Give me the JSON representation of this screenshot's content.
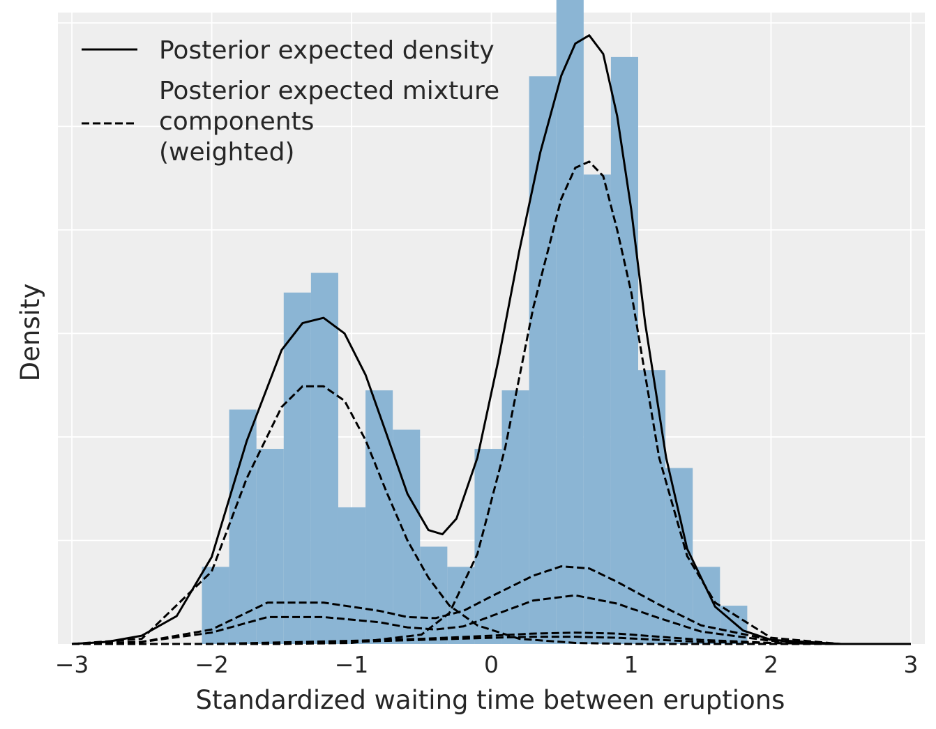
{
  "chart_data": {
    "type": "histogram",
    "xlabel": "Standardized waiting time between eruptions",
    "ylabel": "Density",
    "xlim": [
      -3.1,
      3.1
    ],
    "ylim": [
      0,
      0.61
    ],
    "grid": true,
    "legend_position": "top-left",
    "x_ticks": [
      {
        "value": -3,
        "label": "−3"
      },
      {
        "value": -2,
        "label": "−2"
      },
      {
        "value": -1,
        "label": "−1"
      },
      {
        "value": 0,
        "label": "0"
      },
      {
        "value": 1,
        "label": "1"
      },
      {
        "value": 2,
        "label": "2"
      },
      {
        "value": 3,
        "label": "3"
      }
    ],
    "y_gridlines": [
      0.1,
      0.2,
      0.3,
      0.4,
      0.5,
      0.6
    ],
    "histogram": {
      "color": "#85B1D2",
      "bins": [
        {
          "left": -2.07,
          "right": -1.875,
          "density": 0.0745
        },
        {
          "left": -1.875,
          "right": -1.68,
          "density": 0.2265
        },
        {
          "left": -1.68,
          "right": -1.485,
          "density": 0.1885
        },
        {
          "left": -1.485,
          "right": -1.29,
          "density": 0.3395
        },
        {
          "left": -1.29,
          "right": -1.095,
          "density": 0.3585
        },
        {
          "left": -1.095,
          "right": -0.9,
          "density": 0.132
        },
        {
          "left": -0.9,
          "right": -0.705,
          "density": 0.245
        },
        {
          "left": -0.705,
          "right": -0.51,
          "density": 0.207
        },
        {
          "left": -0.51,
          "right": -0.315,
          "density": 0.094
        },
        {
          "left": -0.315,
          "right": -0.12,
          "density": 0.0745
        },
        {
          "left": -0.12,
          "right": 0.075,
          "density": 0.1885
        },
        {
          "left": 0.075,
          "right": 0.27,
          "density": 0.245
        },
        {
          "left": 0.27,
          "right": 0.465,
          "density": 0.5485
        },
        {
          "left": 0.465,
          "right": 0.66,
          "density": 0.6235
        },
        {
          "left": 0.66,
          "right": 0.855,
          "density": 0.4535
        },
        {
          "left": 0.855,
          "right": 1.05,
          "density": 0.567
        },
        {
          "left": 1.05,
          "right": 1.245,
          "density": 0.2645
        },
        {
          "left": 1.245,
          "right": 1.44,
          "density": 0.17
        },
        {
          "left": 1.44,
          "right": 1.635,
          "density": 0.0745
        },
        {
          "left": 1.635,
          "right": 1.83,
          "density": 0.037
        }
      ]
    },
    "series": [
      {
        "name": "Posterior expected density",
        "style": "solid",
        "x": [
          -3.0,
          -2.75,
          -2.5,
          -2.25,
          -2.0,
          -1.75,
          -1.5,
          -1.35,
          -1.2,
          -1.05,
          -0.9,
          -0.75,
          -0.6,
          -0.45,
          -0.35,
          -0.25,
          -0.1,
          0.05,
          0.2,
          0.35,
          0.5,
          0.6,
          0.7,
          0.8,
          0.9,
          1.0,
          1.1,
          1.25,
          1.4,
          1.6,
          1.8,
          2.0,
          2.25,
          2.5,
          3.0
        ],
        "y": [
          0.0,
          0.002,
          0.008,
          0.027,
          0.084,
          0.196,
          0.284,
          0.31,
          0.315,
          0.3,
          0.26,
          0.203,
          0.145,
          0.11,
          0.106,
          0.121,
          0.18,
          0.274,
          0.38,
          0.475,
          0.549,
          0.58,
          0.588,
          0.57,
          0.51,
          0.42,
          0.31,
          0.18,
          0.092,
          0.036,
          0.013,
          0.004,
          0.001,
          0.0,
          0.0
        ]
      },
      {
        "name": "Posterior expected mixture components (weighted)",
        "style": "dashed",
        "x": [
          -3.0,
          -2.5,
          -2.0,
          -1.75,
          -1.5,
          -1.35,
          -1.2,
          -1.05,
          -0.9,
          -0.75,
          -0.6,
          -0.45,
          -0.3,
          -0.1,
          0.2,
          0.6,
          1.0,
          1.5,
          2.0,
          2.5,
          3.0
        ],
        "y": [
          0.0,
          0.005,
          0.07,
          0.16,
          0.229,
          0.249,
          0.249,
          0.235,
          0.197,
          0.147,
          0.1,
          0.064,
          0.037,
          0.018,
          0.005,
          0.001,
          0.0,
          0.0,
          0.0,
          0.0,
          0.0
        ]
      },
      {
        "name": "Posterior expected mixture components (weighted)",
        "style": "dashed",
        "x": [
          -3.0,
          -2.5,
          -2.0,
          -1.5,
          -1.0,
          -0.5,
          -0.3,
          -0.1,
          0.1,
          0.3,
          0.5,
          0.6,
          0.7,
          0.8,
          0.9,
          1.0,
          1.1,
          1.2,
          1.4,
          1.6,
          2.0,
          2.5,
          3.0
        ],
        "y": [
          0.0,
          0.0,
          0.0,
          0.0,
          0.001,
          0.009,
          0.03,
          0.087,
          0.19,
          0.325,
          0.43,
          0.46,
          0.466,
          0.452,
          0.4,
          0.34,
          0.26,
          0.18,
          0.085,
          0.04,
          0.006,
          0.0,
          0.0
        ]
      },
      {
        "name": "Posterior expected mixture components (weighted)",
        "style": "dashed",
        "x": [
          -3.0,
          -2.5,
          -2.0,
          -1.6,
          -1.2,
          -0.8,
          -0.6,
          -0.4,
          -0.2,
          0.0,
          0.3,
          0.5,
          0.7,
          0.9,
          1.2,
          1.5,
          2.0,
          2.5,
          3.0
        ],
        "y": [
          0.0,
          0.002,
          0.014,
          0.04,
          0.04,
          0.032,
          0.026,
          0.025,
          0.032,
          0.046,
          0.066,
          0.075,
          0.073,
          0.06,
          0.038,
          0.018,
          0.004,
          0.0,
          0.0
        ]
      },
      {
        "name": "Posterior expected mixture components (weighted)",
        "style": "dashed",
        "x": [
          -3.0,
          -2.5,
          -2.0,
          -1.6,
          -1.2,
          -0.8,
          -0.6,
          -0.4,
          -0.2,
          0.0,
          0.3,
          0.6,
          0.9,
          1.2,
          1.5,
          2.0,
          2.5,
          3.0
        ],
        "y": [
          0.0,
          0.002,
          0.011,
          0.026,
          0.026,
          0.021,
          0.016,
          0.014,
          0.017,
          0.027,
          0.042,
          0.047,
          0.039,
          0.025,
          0.012,
          0.003,
          0.0,
          0.0
        ]
      },
      {
        "name": "Posterior expected mixture components (weighted)",
        "style": "dashed",
        "x": [
          -3.0,
          -2.0,
          -1.0,
          -0.5,
          0.0,
          0.3,
          0.6,
          0.9,
          1.2,
          1.5,
          2.0,
          2.5,
          3.0
        ],
        "y": [
          0.0,
          0.0,
          0.003,
          0.005,
          0.008,
          0.01,
          0.011,
          0.01,
          0.007,
          0.004,
          0.001,
          0.0,
          0.0
        ]
      },
      {
        "name": "Posterior expected mixture components (weighted)",
        "style": "dashed",
        "x": [
          -3.0,
          -2.0,
          -1.0,
          -0.5,
          0.0,
          0.3,
          0.6,
          0.9,
          1.2,
          1.5,
          2.0,
          2.5,
          3.0
        ],
        "y": [
          0.0,
          0.0,
          0.002,
          0.004,
          0.006,
          0.007,
          0.007,
          0.006,
          0.004,
          0.002,
          0.001,
          0.0,
          0.0
        ]
      }
    ],
    "legend": [
      {
        "style": "solid",
        "lines": [
          "Posterior expected density"
        ]
      },
      {
        "style": "dashed",
        "lines": [
          "Posterior expected mixture",
          "components",
          "(weighted)"
        ]
      }
    ]
  }
}
